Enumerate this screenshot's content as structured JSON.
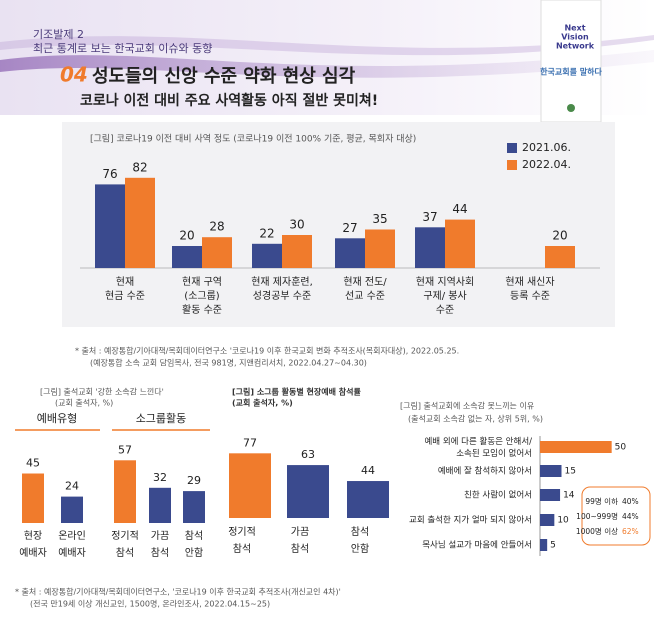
{
  "header": {
    "series_label": "기조발제 2",
    "series_title": "최근 통계로 보는 한국교회 이슈와 동향",
    "number": "04",
    "title": "성도들의 신앙 수준 약화 현상 심각",
    "subtitle": "코로나 이전 대비 주요 사역활동 아직 절반 못미쳐!"
  },
  "badge": {
    "line1": "Next",
    "line2": "Vision",
    "line3": "Network",
    "tagline": "한국교회를 말하다"
  },
  "chart_data": [
    {
      "type": "bar",
      "title": "[그림] 코로나19 이전 대비 사역 정도 (코로나19 이전 100% 기준, 평균, 목회자 대상)",
      "categories": [
        "현재\n현금 수준",
        "현재 구역\n(소그룹)\n활동 수준",
        "현재 제자훈련,\n성경공부 수준",
        "현재 전도/\n선교 수준",
        "현재 지역사회\n구제/ 봉사\n수준",
        "현재 새신자\n등록 수준"
      ],
      "series": [
        {
          "name": "2021.06.",
          "color": "#3a4a8e",
          "values": [
            76,
            20,
            22,
            27,
            37,
            null
          ]
        },
        {
          "name": "2022.04.",
          "color": "#f07b2c",
          "values": [
            82,
            28,
            30,
            35,
            44,
            20
          ]
        }
      ],
      "ylim": [
        0,
        100
      ]
    },
    {
      "type": "panel-bar",
      "title": "[그림] 출석교회 '강한 소속감 느낀다'",
      "subtitle": "(교회 출석자, %)",
      "panels": [
        {
          "name": "예배유형",
          "categories": [
            "현장\n예배자",
            "온라인\n예배자"
          ],
          "values": [
            45,
            24
          ],
          "colors": [
            "#f07b2c",
            "#3a4a8e"
          ]
        },
        {
          "name": "소그룹활동",
          "categories": [
            "정기적\n참석",
            "가끔\n참석",
            "참석\n안함"
          ],
          "values": [
            57,
            32,
            29
          ],
          "colors": [
            "#f07b2c",
            "#3a4a8e",
            "#3a4a8e"
          ]
        }
      ],
      "ylim": [
        0,
        100
      ]
    },
    {
      "type": "bar",
      "title": "[그림] 소그룹 활동별 현장예배 참석률",
      "subtitle": "(교회 출석자, %)",
      "categories": [
        "정기적\n참석",
        "가끔\n참석",
        "참석\n안함"
      ],
      "values": [
        77,
        63,
        44
      ],
      "colors": [
        "#f07b2c",
        "#3a4a8e",
        "#3a4a8e"
      ],
      "ylim": [
        0,
        100
      ]
    },
    {
      "type": "hbar",
      "title": "[그림] 출석교회에 소속감 못느끼는 이유",
      "subtitle": "(출석교회 소속감 없는 자, 상위 5위, %)",
      "categories": [
        "예배 외에 다른 활동은 안해서/\n소속된 모임이 없어서",
        "예배에 잘 참석하지 않아서",
        "친한 사람이 없어서",
        "교회 출석한 지가 얼마 되지 않아서",
        "목사님 설교가 마음에 안들어서"
      ],
      "values": [
        50,
        15,
        14,
        10,
        5
      ],
      "colors": [
        "#f07b2c",
        "#3a4a8e",
        "#3a4a8e",
        "#3a4a8e",
        "#3a4a8e"
      ],
      "xlim": [
        0,
        60
      ],
      "callout": [
        {
          "label": "99명 이하",
          "value": "40%"
        },
        {
          "label": "100~999명",
          "value": "44%"
        },
        {
          "label": "1000명 이상",
          "value": "62%"
        }
      ]
    }
  ],
  "sources": [
    {
      "line1": "* 출처 : 예장통합/기아대책/목회데이터연구소 '코로나19 이후 한국교회 변화 추적조사(목회자대상), 2022.05.25.",
      "line2": "(예장통합 소속 교회 담임목사, 전국 981명, 지앤컴리서치, 2022.04.27~04.30)"
    },
    {
      "line1": "* 출처 : 예장통합/기아대책/목회데이터연구소, '코로나19 이후 한국교회 추적조사(개신교인 4차)'",
      "line2": "(전국 만19세 이상 개신교인, 1500명, 온라인조사, 2022.04.15~25)"
    }
  ]
}
